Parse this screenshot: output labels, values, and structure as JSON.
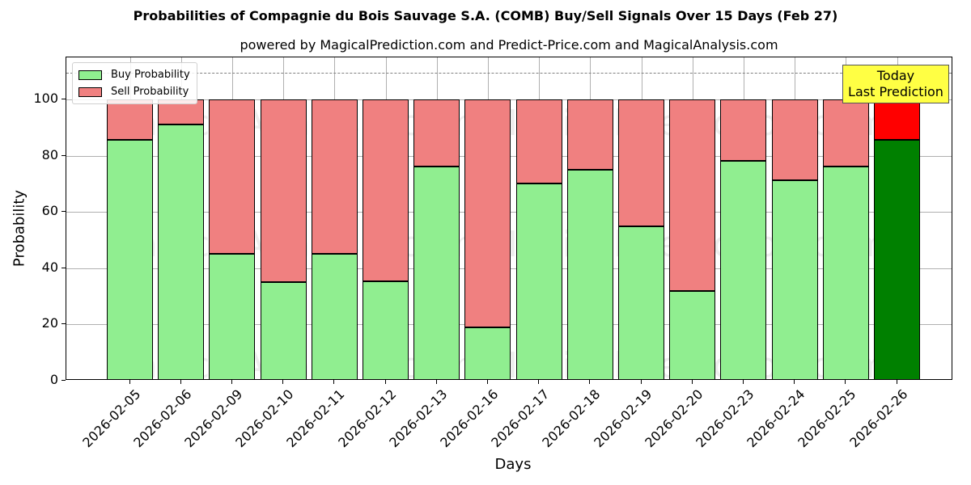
{
  "chart": {
    "title": "Probabilities of Compagnie du Bois Sauvage S.A. (COMB) Buy/Sell Signals Over 15 Days (Feb 27)",
    "subtitle": "powered by MagicalPrediction.com and Predict-Price.com and MagicalAnalysis.com",
    "xlabel": "Days",
    "ylabel": "Probability",
    "legend": {
      "buy": "Buy Probability",
      "sell": "Sell Probability"
    },
    "annotation": {
      "line1": "Today",
      "line2": "Last Prediction"
    },
    "yticks": [
      "0",
      "20",
      "40",
      "60",
      "80",
      "100"
    ],
    "watermarks": [
      "MagicalAnalysis.com",
      "MagicalPrediction.com"
    ],
    "colors": {
      "buy": "#90ee90",
      "sell": "#f08080",
      "today_buy": "#008000",
      "today_sell": "#ff0000",
      "annotation_bg": "#ffff44",
      "reference_line": "#808080"
    }
  },
  "chart_data": {
    "type": "bar",
    "stacked": true,
    "title": "Probabilities of Compagnie du Bois Sauvage S.A. (COMB) Buy/Sell Signals Over 15 Days (Feb 27)",
    "subtitle": "powered by MagicalPrediction.com and Predict-Price.com and MagicalAnalysis.com",
    "xlabel": "Days",
    "ylabel": "Probability",
    "ylim": [
      0,
      115
    ],
    "yticks": [
      0,
      20,
      40,
      60,
      80,
      100
    ],
    "reference_line": 110,
    "grid": true,
    "legend_position": "upper left",
    "categories": [
      "2026-02-05",
      "2026-02-06",
      "2026-02-09",
      "2026-02-10",
      "2026-02-11",
      "2026-02-12",
      "2026-02-13",
      "2026-02-16",
      "2026-02-17",
      "2026-02-18",
      "2026-02-19",
      "2026-02-20",
      "2026-02-23",
      "2026-02-24",
      "2026-02-25",
      "2026-02-26"
    ],
    "series": [
      {
        "name": "Buy Probability",
        "values": [
          85.8,
          91.0,
          45.1,
          35.0,
          45.1,
          35.5,
          76.3,
          19.1,
          70.2,
          75.1,
          54.9,
          31.8,
          78.3,
          71.4,
          76.3,
          85.8
        ]
      },
      {
        "name": "Sell Probability",
        "values": [
          14.2,
          9.0,
          54.9,
          65.0,
          54.9,
          64.5,
          23.7,
          80.9,
          29.8,
          24.9,
          45.1,
          68.2,
          21.7,
          28.6,
          23.7,
          14.2
        ]
      }
    ],
    "annotations": [
      {
        "text": "Today\nLast Prediction",
        "category": "2026-02-26"
      }
    ],
    "highlight": {
      "category": "2026-02-26",
      "buy_color": "#008000",
      "sell_color": "#ff0000"
    }
  }
}
